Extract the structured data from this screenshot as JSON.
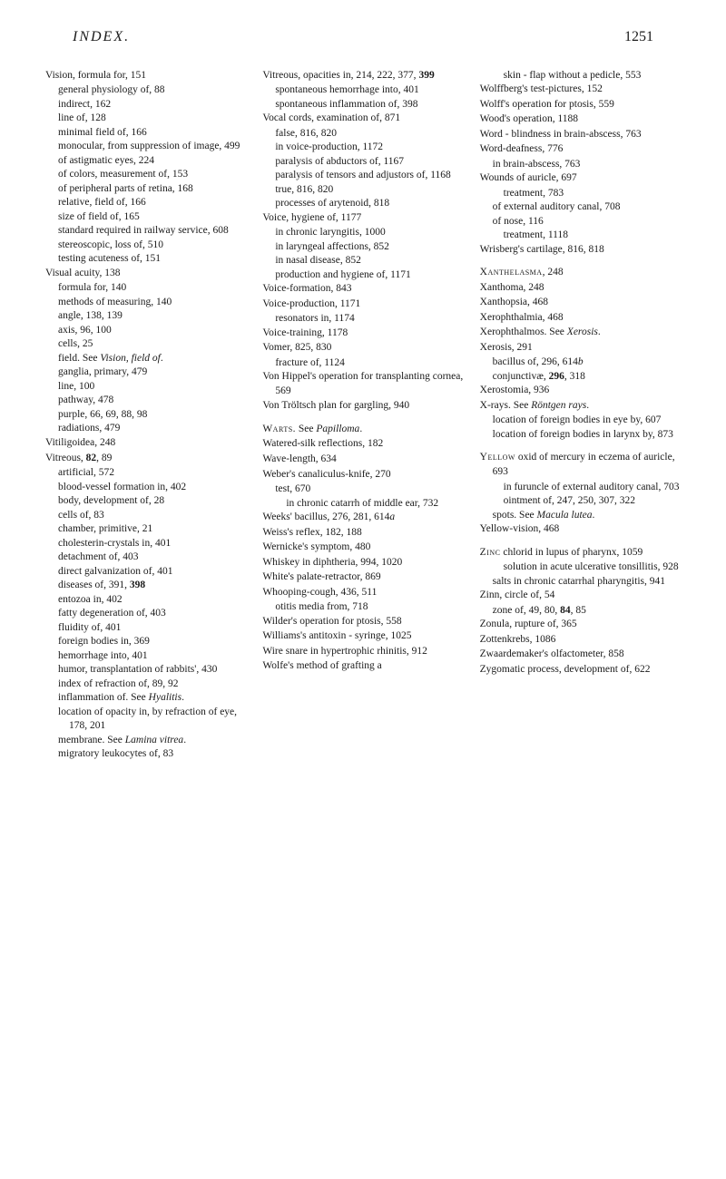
{
  "header": {
    "title": "INDEX.",
    "page": "1251"
  },
  "col1": [
    {
      "c": "entry",
      "t": "Vision, formula for, 151"
    },
    {
      "c": "sub1",
      "t": "general physiology of, 88"
    },
    {
      "c": "sub1",
      "t": "indirect, 162"
    },
    {
      "c": "sub1",
      "t": "line of, 128"
    },
    {
      "c": "sub1",
      "t": "minimal field of, 166"
    },
    {
      "c": "sub1",
      "t": "monocular, from suppression of image, 499"
    },
    {
      "c": "sub1",
      "t": "of astigmatic eyes, 224"
    },
    {
      "c": "sub1",
      "t": "of colors, measurement of, 153"
    },
    {
      "c": "sub1",
      "t": "of peripheral parts of retina, 168"
    },
    {
      "c": "sub1",
      "t": "relative, field of, 166"
    },
    {
      "c": "sub1",
      "t": "size of field of, 165"
    },
    {
      "c": "sub1",
      "t": "standard required in railway service, 608"
    },
    {
      "c": "sub1",
      "t": "stereoscopic, loss of, 510"
    },
    {
      "c": "sub1",
      "t": "testing acuteness of, 151"
    },
    {
      "c": "entry",
      "t": "Visual acuity, 138"
    },
    {
      "c": "sub1",
      "t": "formula for, 140"
    },
    {
      "c": "sub1",
      "t": "methods of measuring, 140"
    },
    {
      "c": "sub1",
      "t": "angle, 138, 139"
    },
    {
      "c": "sub1",
      "t": "axis, 96, 100"
    },
    {
      "c": "sub1",
      "t": "cells, 25"
    },
    {
      "c": "sub1",
      "html": "field.  See <span class='i'>Vision, field of</span>."
    },
    {
      "c": "sub1",
      "t": "ganglia, primary, 479"
    },
    {
      "c": "sub1",
      "t": "line, 100"
    },
    {
      "c": "sub1",
      "t": "pathway, 478"
    },
    {
      "c": "sub1",
      "t": "purple, 66, 69, 88, 98"
    },
    {
      "c": "sub1",
      "t": "radiations, 479"
    },
    {
      "c": "entry",
      "t": "Vitiligoidea, 248"
    },
    {
      "c": "entry",
      "html": "Vitreous, <span class='b'>82</span>, 89"
    },
    {
      "c": "sub1",
      "t": "artificial, 572"
    },
    {
      "c": "sub1",
      "t": "blood-vessel formation in, 402"
    },
    {
      "c": "sub1",
      "t": "body, development of, 28"
    },
    {
      "c": "sub1",
      "t": "cells of, 83"
    },
    {
      "c": "sub1",
      "t": "chamber, primitive, 21"
    },
    {
      "c": "sub1",
      "t": "cholesterin-crystals in, 401"
    },
    {
      "c": "sub1",
      "t": "detachment of, 403"
    },
    {
      "c": "sub1",
      "t": "direct galvanization of, 401"
    },
    {
      "c": "sub1",
      "html": "diseases of, 391, <span class='b'>398</span>"
    },
    {
      "c": "sub1",
      "t": "entozoa in, 402"
    },
    {
      "c": "sub1",
      "t": "fatty degeneration of, 403"
    },
    {
      "c": "sub1",
      "t": "fluidity of, 401"
    },
    {
      "c": "sub1",
      "t": "foreign bodies in, 369"
    },
    {
      "c": "sub1",
      "t": "hemorrhage into, 401"
    },
    {
      "c": "sub1",
      "t": "humor, transplantation of rabbits', 430"
    },
    {
      "c": "sub1",
      "t": "index of refraction of, 89, 92"
    },
    {
      "c": "sub1",
      "html": "inflammation of. See <span class='i'>Hyalitis</span>."
    },
    {
      "c": "sub1",
      "t": "location of opacity in, by refraction of eye, 178, 201"
    },
    {
      "c": "sub1",
      "html": "membrane. See <span class='i'>Lamina vitrea</span>."
    },
    {
      "c": "sub1",
      "t": "migratory leukocytes of, 83"
    }
  ],
  "col2": [
    {
      "c": "entry",
      "html": "Vitreous, opacities in, 214, 222, 377, <span class='b'>399</span>"
    },
    {
      "c": "sub1",
      "t": "spontaneous hemorrhage into, 401"
    },
    {
      "c": "sub1",
      "t": "spontaneous inflammation of, 398"
    },
    {
      "c": "entry",
      "t": "Vocal cords, examination of, 871"
    },
    {
      "c": "sub1",
      "t": "false, 816, 820"
    },
    {
      "c": "sub1",
      "t": "in voice-production, 1172"
    },
    {
      "c": "sub1",
      "t": "paralysis of abductors of, 1167"
    },
    {
      "c": "sub1",
      "t": "paralysis of tensors and adjustors of, 1168"
    },
    {
      "c": "sub1",
      "t": "true, 816, 820"
    },
    {
      "c": "sub1",
      "t": "processes of arytenoid, 818"
    },
    {
      "c": "entry",
      "t": "Voice, hygiene of, 1177"
    },
    {
      "c": "sub1",
      "t": "in chronic laryngitis, 1000"
    },
    {
      "c": "sub1",
      "t": "in laryngeal affections, 852"
    },
    {
      "c": "sub1",
      "t": "in nasal disease, 852"
    },
    {
      "c": "sub1",
      "t": "production and hygiene of, 1171"
    },
    {
      "c": "entry",
      "t": "Voice-formation, 843"
    },
    {
      "c": "entry",
      "t": "Voice-production, 1171"
    },
    {
      "c": "sub1",
      "t": "resonators in, 1174"
    },
    {
      "c": "entry",
      "t": "Voice-training, 1178"
    },
    {
      "c": "entry",
      "t": "Vomer, 825, 830"
    },
    {
      "c": "sub1",
      "t": "fracture of, 1124"
    },
    {
      "c": "entry",
      "t": "Von Hippel's operation for transplanting cornea, 569"
    },
    {
      "c": "entry",
      "t": "Von Tröltsch plan for gargling, 940"
    },
    {
      "c": "entry group-gap",
      "html": "<span class='sc'>Warts.</span>  See <span class='i'>Papilloma</span>."
    },
    {
      "c": "entry",
      "t": "Watered-silk reflections, 182"
    },
    {
      "c": "entry",
      "t": "Wave-length, 634"
    },
    {
      "c": "entry",
      "t": "Weber's canaliculus-knife, 270"
    },
    {
      "c": "sub1",
      "t": "test, 670"
    },
    {
      "c": "sub2",
      "t": "in chronic catarrh of middle ear, 732"
    },
    {
      "c": "entry",
      "html": "Weeks' bacillus, 276, 281, 614<span class='i'>a</span>"
    },
    {
      "c": "entry",
      "t": "Weiss's reflex, 182, 188"
    },
    {
      "c": "entry",
      "t": "Wernicke's symptom, 480"
    },
    {
      "c": "entry",
      "t": "Whiskey in diphtheria, 994, 1020"
    },
    {
      "c": "entry",
      "t": "White's palate-retractor, 869"
    },
    {
      "c": "entry",
      "t": "Whooping-cough, 436, 511"
    },
    {
      "c": "sub1",
      "t": "otitis media from, 718"
    },
    {
      "c": "entry",
      "t": "Wilder's operation for ptosis, 558"
    },
    {
      "c": "entry",
      "t": "Williams's antitoxin - syringe, 1025"
    },
    {
      "c": "entry",
      "t": "Wire snare in hypertrophic rhinitis, 912"
    },
    {
      "c": "entry",
      "t": "Wolfe's method of grafting a"
    }
  ],
  "col3": [
    {
      "c": "sub2",
      "t": "skin - flap without a pedicle, 553"
    },
    {
      "c": "entry",
      "t": "Wolffberg's test-pictures, 152"
    },
    {
      "c": "entry",
      "t": "Wolff's operation for ptosis, 559"
    },
    {
      "c": "entry",
      "t": "Wood's operation, 1188"
    },
    {
      "c": "entry",
      "t": "Word - blindness in brain-abscess, 763"
    },
    {
      "c": "entry",
      "t": "Word-deafness, 776"
    },
    {
      "c": "sub1",
      "t": "in brain-abscess, 763"
    },
    {
      "c": "entry",
      "t": "Wounds of auricle, 697"
    },
    {
      "c": "sub2",
      "t": "treatment, 783"
    },
    {
      "c": "sub1",
      "t": "of external auditory canal, 708"
    },
    {
      "c": "sub1",
      "t": "of nose, 116"
    },
    {
      "c": "sub2",
      "t": "treatment, 1118"
    },
    {
      "c": "entry",
      "t": "Wrisberg's cartilage, 816, 818"
    },
    {
      "c": "entry group-gap",
      "html": "<span class='sc'>Xanthelasma</span>, 248"
    },
    {
      "c": "entry",
      "t": "Xanthoma, 248"
    },
    {
      "c": "entry",
      "t": "Xanthopsia, 468"
    },
    {
      "c": "entry",
      "t": "Xerophthalmia, 468"
    },
    {
      "c": "entry",
      "html": "Xerophthalmos.  See <span class='i'>Xerosis</span>."
    },
    {
      "c": "entry",
      "t": "Xerosis, 291"
    },
    {
      "c": "sub1",
      "html": "bacillus of, 296, 614<span class='i'>b</span>"
    },
    {
      "c": "sub1",
      "html": "conjunctivæ, <span class='b'>296</span>, 318"
    },
    {
      "c": "entry",
      "t": "Xerostomia, 936"
    },
    {
      "c": "entry",
      "html": "X-rays.  See <span class='i'>Röntgen rays</span>."
    },
    {
      "c": "sub1",
      "t": "location of foreign bodies in eye by, 607"
    },
    {
      "c": "sub1",
      "t": "location of foreign bodies in larynx by, 873"
    },
    {
      "c": "entry group-gap",
      "html": "<span class='sc'>Yellow</span> oxid of mercury in eczema of auricle, 693"
    },
    {
      "c": "sub2",
      "t": "in furuncle of external auditory canal, 703"
    },
    {
      "c": "sub2",
      "t": "ointment of, 247, 250, 307, 322"
    },
    {
      "c": "sub1",
      "html": "spots.  See <span class='i'>Macula lutea</span>."
    },
    {
      "c": "entry",
      "t": "Yellow-vision, 468"
    },
    {
      "c": "entry group-gap",
      "html": "<span class='sc'>Zinc</span> chlorid in lupus of pharynx, 1059"
    },
    {
      "c": "sub2",
      "t": "solution in acute ulcerative tonsillitis, 928"
    },
    {
      "c": "sub1",
      "t": "salts in chronic catarrhal pharyngitis, 941"
    },
    {
      "c": "entry",
      "t": "Zinn, circle of, 54"
    },
    {
      "c": "sub1",
      "html": "zone of, 49, 80, <span class='b'>84</span>, 85"
    },
    {
      "c": "entry",
      "t": "Zonula, rupture of, 365"
    },
    {
      "c": "entry",
      "t": "Zottenkrebs, 1086"
    },
    {
      "c": "entry",
      "t": "Zwaardemaker's olfactometer, 858"
    },
    {
      "c": "entry",
      "t": "Zygomatic process, development of, 622"
    }
  ]
}
